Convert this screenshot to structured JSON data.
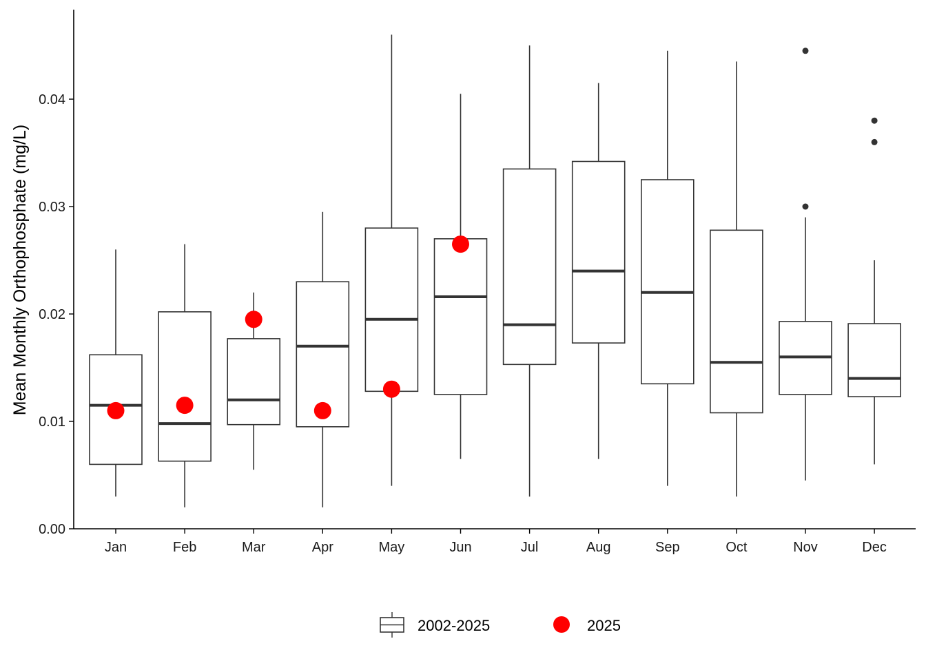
{
  "chart_data": {
    "type": "box",
    "title": "",
    "xlabel": "",
    "ylabel": "Mean Monthly Orthophosphate (mg/L)",
    "ylim": [
      0,
      0.0485
    ],
    "y_ticks": [
      "0.00",
      "0.01",
      "0.02",
      "0.03",
      "0.04"
    ],
    "y_tick_values": [
      0,
      0.01,
      0.02,
      0.03,
      0.04
    ],
    "categories": [
      "Jan",
      "Feb",
      "Mar",
      "Apr",
      "May",
      "Jun",
      "Jul",
      "Aug",
      "Sep",
      "Oct",
      "Nov",
      "Dec"
    ],
    "box_series": {
      "name": "2002-2025",
      "boxes": [
        {
          "whisker_low": 0.003,
          "q1": 0.006,
          "median": 0.0115,
          "q3": 0.0162,
          "whisker_high": 0.026,
          "outliers": []
        },
        {
          "whisker_low": 0.002,
          "q1": 0.0063,
          "median": 0.0098,
          "q3": 0.0202,
          "whisker_high": 0.0265,
          "outliers": []
        },
        {
          "whisker_low": 0.0055,
          "q1": 0.0097,
          "median": 0.012,
          "q3": 0.0177,
          "whisker_high": 0.022,
          "outliers": []
        },
        {
          "whisker_low": 0.002,
          "q1": 0.0095,
          "median": 0.017,
          "q3": 0.023,
          "whisker_high": 0.0295,
          "outliers": []
        },
        {
          "whisker_low": 0.004,
          "q1": 0.0128,
          "median": 0.0195,
          "q3": 0.028,
          "whisker_high": 0.046,
          "outliers": []
        },
        {
          "whisker_low": 0.0065,
          "q1": 0.0125,
          "median": 0.0216,
          "q3": 0.027,
          "whisker_high": 0.0405,
          "outliers": []
        },
        {
          "whisker_low": 0.003,
          "q1": 0.0153,
          "median": 0.019,
          "q3": 0.0335,
          "whisker_high": 0.045,
          "outliers": []
        },
        {
          "whisker_low": 0.0065,
          "q1": 0.0173,
          "median": 0.024,
          "q3": 0.0342,
          "whisker_high": 0.0415,
          "outliers": []
        },
        {
          "whisker_low": 0.004,
          "q1": 0.0135,
          "median": 0.022,
          "q3": 0.0325,
          "whisker_high": 0.0445,
          "outliers": []
        },
        {
          "whisker_low": 0.003,
          "q1": 0.0108,
          "median": 0.0155,
          "q3": 0.0278,
          "whisker_high": 0.0435,
          "outliers": []
        },
        {
          "whisker_low": 0.0045,
          "q1": 0.0125,
          "median": 0.016,
          "q3": 0.0193,
          "whisker_high": 0.029,
          "outliers": [
            0.03,
            0.0445
          ]
        },
        {
          "whisker_low": 0.006,
          "q1": 0.0123,
          "median": 0.014,
          "q3": 0.0191,
          "whisker_high": 0.025,
          "outliers": [
            0.036,
            0.038
          ]
        }
      ]
    },
    "point_series": {
      "name": "2025",
      "color": "#ff0000",
      "values": [
        0.011,
        0.0115,
        0.0195,
        0.011,
        0.013,
        0.0265,
        null,
        null,
        null,
        null,
        null,
        null
      ]
    },
    "legend_position": "bottom",
    "grid": false
  },
  "colors": {
    "box_line": "#333333",
    "axis": "#000000",
    "point": "#ff0000",
    "outlier": "#333333"
  }
}
